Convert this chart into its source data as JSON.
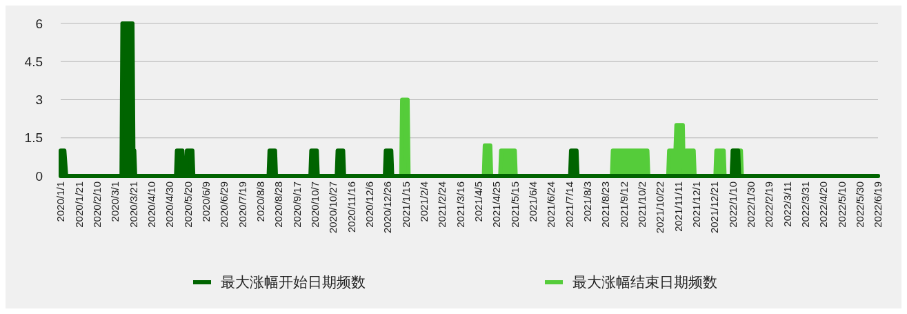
{
  "chart_data": {
    "type": "area",
    "xlim": [
      "2020-01-01",
      "2022-06-19"
    ],
    "ylim": [
      0,
      6
    ],
    "yticks": [
      0,
      1.5,
      3,
      4.5,
      6
    ],
    "grid": "y",
    "legend": "bottom",
    "xticks": [
      {
        "value": "2020-01-01",
        "label": "2020/1/1"
      },
      {
        "value": "2020-01-21",
        "label": "2020/1/21"
      },
      {
        "value": "2020-02-10",
        "label": "2020/2/10"
      },
      {
        "value": "2020-03-01",
        "label": "2020/3/1"
      },
      {
        "value": "2020-03-21",
        "label": "2020/3/21"
      },
      {
        "value": "2020-04-10",
        "label": "2020/4/10"
      },
      {
        "value": "2020-04-30",
        "label": "2020/4/30"
      },
      {
        "value": "2020-05-20",
        "label": "2020/5/20"
      },
      {
        "value": "2020-06-09",
        "label": "2020/6/9"
      },
      {
        "value": "2020-06-29",
        "label": "2020/6/29"
      },
      {
        "value": "2020-07-19",
        "label": "2020/7/19"
      },
      {
        "value": "2020-08-08",
        "label": "2020/8/8"
      },
      {
        "value": "2020-08-28",
        "label": "2020/8/28"
      },
      {
        "value": "2020-09-17",
        "label": "2020/9/17"
      },
      {
        "value": "2020-10-07",
        "label": "2020/10/7"
      },
      {
        "value": "2020-10-27",
        "label": "2020/10/27"
      },
      {
        "value": "2020-11-16",
        "label": "2020/11/16"
      },
      {
        "value": "2020-12-06",
        "label": "2020/12/6"
      },
      {
        "value": "2020-12-26",
        "label": "2020/12/26"
      },
      {
        "value": "2021-01-15",
        "label": "2021/1/15"
      },
      {
        "value": "2021-02-04",
        "label": "2021/2/4"
      },
      {
        "value": "2021-02-24",
        "label": "2021/2/24"
      },
      {
        "value": "2021-03-16",
        "label": "2021/3/16"
      },
      {
        "value": "2021-04-05",
        "label": "2021/4/5"
      },
      {
        "value": "2021-04-25",
        "label": "2021/4/25"
      },
      {
        "value": "2021-05-15",
        "label": "2021/5/15"
      },
      {
        "value": "2021-06-04",
        "label": "2021/6/4"
      },
      {
        "value": "2021-06-24",
        "label": "2021/6/24"
      },
      {
        "value": "2021-07-14",
        "label": "2021/7/14"
      },
      {
        "value": "2021-08-03",
        "label": "2021/8/3"
      },
      {
        "value": "2021-08-23",
        "label": "2021/8/23"
      },
      {
        "value": "2021-09-12",
        "label": "2021/9/12"
      },
      {
        "value": "2021-10-02",
        "label": "2021/10/2"
      },
      {
        "value": "2021-10-22",
        "label": "2021/10/22"
      },
      {
        "value": "2021-11-11",
        "label": "2021/11/11"
      },
      {
        "value": "2021-12-01",
        "label": "2021/12/1"
      },
      {
        "value": "2021-12-21",
        "label": "2021/12/21"
      },
      {
        "value": "2022-01-10",
        "label": "2022/1/10"
      },
      {
        "value": "2022-01-30",
        "label": "2022/1/30"
      },
      {
        "value": "2022-02-19",
        "label": "2022/2/19"
      },
      {
        "value": "2022-03-11",
        "label": "2022/3/11"
      },
      {
        "value": "2022-03-31",
        "label": "2022/3/31"
      },
      {
        "value": "2022-04-20",
        "label": "2022/4/20"
      },
      {
        "value": "2022-05-10",
        "label": "2022/5/10"
      },
      {
        "value": "2022-05-30",
        "label": "2022/5/30"
      },
      {
        "value": "2022-06-19",
        "label": "2022/6/19"
      }
    ],
    "series": [
      {
        "name": "最大涨幅开始日期频数",
        "color": "#006400",
        "x": [
          "2020-01-01",
          "2020-01-05",
          "2020-01-07",
          "2020-03-08",
          "2020-03-09",
          "2020-03-20",
          "2020-03-21",
          "2020-03-22",
          "2020-03-23",
          "2020-05-07",
          "2020-05-08",
          "2020-05-14",
          "2020-05-15",
          "2020-05-18",
          "2020-05-19",
          "2020-05-25",
          "2020-05-26",
          "2020-08-17",
          "2020-08-18",
          "2020-08-24",
          "2020-08-25",
          "2020-10-02",
          "2020-10-03",
          "2020-10-09",
          "2020-10-10",
          "2020-10-31",
          "2020-11-01",
          "2020-11-07",
          "2020-11-08",
          "2020-12-23",
          "2020-12-24",
          "2020-12-30",
          "2020-12-31",
          "2021-07-15",
          "2021-07-16",
          "2021-07-22",
          "2021-07-23",
          "2022-01-09",
          "2022-01-10",
          "2022-01-16",
          "2022-01-17",
          "2022-06-19"
        ],
        "values": [
          1,
          1,
          0,
          0,
          6,
          6,
          1,
          1,
          0,
          0,
          1,
          1,
          0,
          0,
          1,
          1,
          0,
          0,
          1,
          1,
          0,
          0,
          1,
          1,
          0,
          0,
          1,
          1,
          0,
          0,
          1,
          1,
          0,
          0,
          1,
          1,
          0,
          0,
          1,
          1,
          0,
          0
        ]
      },
      {
        "name": "最大涨幅结束日期频数",
        "color": "#55cc3a",
        "x": [
          "2020-01-01",
          "2021-01-10",
          "2021-01-11",
          "2021-01-17",
          "2021-01-18",
          "2021-04-11",
          "2021-04-12",
          "2021-04-18",
          "2021-04-19",
          "2021-04-29",
          "2021-04-30",
          "2021-05-15",
          "2021-05-16",
          "2021-08-30",
          "2021-08-31",
          "2021-10-08",
          "2021-10-09",
          "2021-10-31",
          "2021-11-01",
          "2021-11-08",
          "2021-11-09",
          "2021-11-16",
          "2021-11-17",
          "2021-11-19",
          "2021-11-20",
          "2021-11-28",
          "2021-11-29",
          "2021-12-22",
          "2021-12-23",
          "2021-12-31",
          "2022-01-01",
          "2022-01-09",
          "2022-01-10",
          "2022-01-19",
          "2022-01-20",
          "2022-06-19"
        ],
        "values": [
          0,
          0,
          3,
          3,
          0,
          0,
          1.2,
          1.2,
          0,
          0,
          1,
          1,
          0,
          0,
          1,
          1,
          0,
          0,
          1,
          1,
          2,
          2,
          0,
          0,
          1,
          1,
          0,
          0,
          1,
          1,
          0,
          0,
          1,
          1,
          0,
          0
        ]
      }
    ]
  }
}
